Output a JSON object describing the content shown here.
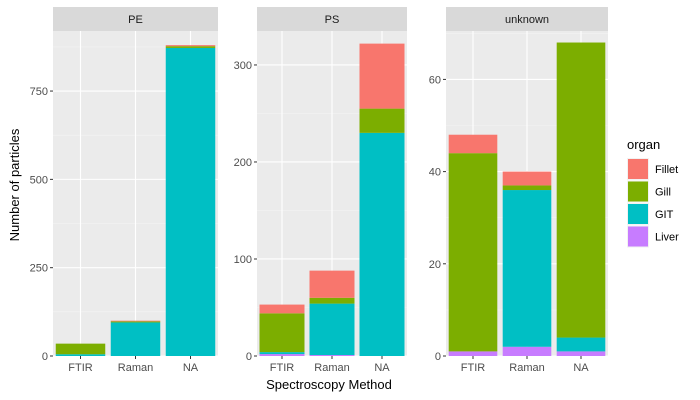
{
  "chart_data": {
    "type": "bar",
    "stacked": true,
    "faceted": true,
    "xlabel": "Spectroscopy Method",
    "ylabel": "Number of particles",
    "legend": {
      "title": "organ",
      "placement": "right",
      "entries": [
        {
          "name": "Fillet",
          "color": "#F8766D"
        },
        {
          "name": "Gill",
          "color": "#7CAE00"
        },
        {
          "name": "GIT",
          "color": "#00BFC4"
        },
        {
          "name": "Liver",
          "color": "#C77CFF"
        }
      ]
    },
    "stack_order_bottom_to_top": [
      "Liver",
      "GIT",
      "Gill",
      "Fillet"
    ],
    "facets": [
      {
        "title": "PE",
        "categories": [
          "FTIR",
          "Raman",
          "NA"
        ],
        "ylim": [
          0,
          920
        ],
        "yticks": [
          0,
          250,
          500,
          750
        ],
        "series": [
          {
            "name": "Fillet",
            "values": [
              0,
              2,
              3
            ]
          },
          {
            "name": "Gill",
            "values": [
              30,
              3,
              5
            ]
          },
          {
            "name": "GIT",
            "values": [
              5,
              95,
              872
            ]
          },
          {
            "name": "Liver",
            "values": [
              0,
              0,
              0
            ]
          }
        ]
      },
      {
        "title": "PS",
        "categories": [
          "FTIR",
          "Raman",
          "NA"
        ],
        "ylim": [
          0,
          335
        ],
        "yticks": [
          0,
          100,
          200,
          300
        ],
        "series": [
          {
            "name": "Fillet",
            "values": [
              9,
              28,
              67
            ]
          },
          {
            "name": "Gill",
            "values": [
              40,
              6,
              25
            ]
          },
          {
            "name": "GIT",
            "values": [
              2,
              53,
              230
            ]
          },
          {
            "name": "Liver",
            "values": [
              2,
              1,
              0
            ]
          }
        ]
      },
      {
        "title": "unknown",
        "categories": [
          "FTIR",
          "Raman",
          "NA"
        ],
        "ylim": [
          0,
          70.5
        ],
        "yticks": [
          0,
          20,
          40,
          60
        ],
        "series": [
          {
            "name": "Fillet",
            "values": [
              4,
              3,
              0
            ]
          },
          {
            "name": "Gill",
            "values": [
              43,
              1,
              64
            ]
          },
          {
            "name": "GIT",
            "values": [
              0,
              34,
              3
            ]
          },
          {
            "name": "Liver",
            "values": [
              1,
              2,
              1
            ]
          }
        ]
      }
    ]
  }
}
